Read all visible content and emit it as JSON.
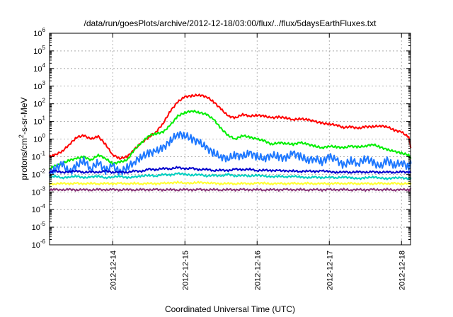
{
  "chart_data": {
    "type": "line",
    "title": "/data/run/goesPlots/archive/2012-12-18/03:00/flux/../flux/5daysEarthFluxes.txt",
    "xlabel": "Coordinated Universal Time (UTC)",
    "ylabel": {
      "pre": "protons/cm",
      "sup": "2",
      "post": "-s-sr-MeV"
    },
    "y_scale": "log",
    "ylim_exponent": [
      -6,
      6
    ],
    "y_tick_exponents": [
      "-6",
      "-5",
      "-4",
      "-3",
      "-2",
      "-1",
      "0",
      "1",
      "2",
      "3",
      "4",
      "5",
      "6"
    ],
    "y_tick_base": "10",
    "xlim": [
      "2012-12-13 03:00",
      "2012-12-18 03:00"
    ],
    "x_ticks": [
      "2012-12-14",
      "2012-12-15",
      "2012-12-16",
      "2012-12-17",
      "2012-12-18"
    ],
    "x_tick_days": [
      14,
      15,
      16,
      17,
      18
    ],
    "grid": true,
    "x_days": [
      13.12,
      13.2,
      13.3,
      13.4,
      13.5,
      13.6,
      13.7,
      13.8,
      13.9,
      14.0,
      14.1,
      14.2,
      14.3,
      14.4,
      14.5,
      14.6,
      14.7,
      14.8,
      14.9,
      15.0,
      15.1,
      15.2,
      15.3,
      15.4,
      15.5,
      15.6,
      15.7,
      15.8,
      15.9,
      16.0,
      16.1,
      16.2,
      16.3,
      16.4,
      16.5,
      16.6,
      16.7,
      16.8,
      16.9,
      17.0,
      17.1,
      17.2,
      17.3,
      17.4,
      17.5,
      17.6,
      17.7,
      17.8,
      17.9,
      18.0,
      18.1,
      18.13
    ],
    "series": [
      {
        "color": "#ff0000",
        "log10_values": [
          -1.0,
          -0.9,
          -0.7,
          -0.3,
          0.1,
          0.2,
          0.0,
          0.15,
          -0.3,
          -0.9,
          -1.1,
          -1.0,
          -0.6,
          -0.2,
          0.1,
          0.4,
          0.9,
          1.6,
          2.1,
          2.4,
          2.45,
          2.5,
          2.4,
          2.1,
          1.7,
          1.3,
          1.2,
          1.4,
          1.3,
          1.35,
          1.3,
          1.2,
          1.25,
          1.2,
          1.1,
          1.15,
          1.1,
          1.0,
          0.9,
          0.85,
          0.8,
          0.65,
          0.7,
          0.6,
          0.7,
          0.7,
          0.75,
          0.7,
          0.5,
          0.4,
          0.1,
          -0.5
        ]
      },
      {
        "color": "#00ee00",
        "log10_values": [
          -1.7,
          -1.5,
          -1.4,
          -1.2,
          -1.1,
          -1.0,
          -1.2,
          -0.9,
          -1.1,
          -1.4,
          -1.3,
          -1.2,
          -0.6,
          -0.2,
          0.2,
          0.3,
          0.4,
          0.8,
          1.3,
          1.5,
          1.6,
          1.5,
          1.4,
          1.1,
          0.6,
          0.2,
          0.0,
          0.2,
          0.1,
          0.0,
          -0.1,
          -0.3,
          -0.2,
          -0.25,
          -0.3,
          -0.2,
          -0.3,
          -0.4,
          -0.5,
          -0.4,
          -0.45,
          -0.5,
          -0.4,
          -0.45,
          -0.4,
          -0.3,
          -0.45,
          -0.6,
          -0.7,
          -0.8,
          -0.9,
          -1.1
        ]
      },
      {
        "color": "#1e78ff",
        "log10_values": [
          -2.0,
          -1.7,
          -1.4,
          -1.9,
          -1.5,
          -1.2,
          -1.7,
          -1.3,
          -1.8,
          -1.5,
          -1.9,
          -1.6,
          -1.3,
          -1.0,
          -0.8,
          -0.7,
          -0.5,
          -0.1,
          0.3,
          0.2,
          0.0,
          -0.2,
          -0.5,
          -0.8,
          -1.0,
          -1.1,
          -0.9,
          -1.0,
          -0.8,
          -1.0,
          -1.1,
          -0.9,
          -1.0,
          -1.1,
          -0.8,
          -1.0,
          -1.2,
          -1.1,
          -1.3,
          -1.0,
          -1.2,
          -1.5,
          -1.2,
          -1.4,
          -1.1,
          -1.3,
          -1.6,
          -1.2,
          -1.5,
          -1.3,
          -1.6,
          -1.4
        ]
      },
      {
        "color": "#0000cc",
        "log10_values": [
          -1.9,
          -1.8,
          -1.9,
          -1.85,
          -1.8,
          -1.9,
          -1.85,
          -1.9,
          -1.8,
          -1.9,
          -1.85,
          -1.9,
          -1.8,
          -1.85,
          -1.7,
          -1.75,
          -1.65,
          -1.7,
          -1.6,
          -1.7,
          -1.65,
          -1.75,
          -1.7,
          -1.8,
          -1.75,
          -1.8,
          -1.7,
          -1.75,
          -1.7,
          -1.8,
          -1.75,
          -1.8,
          -1.78,
          -1.82,
          -1.8,
          -1.85,
          -1.8,
          -1.85,
          -1.8,
          -1.85,
          -1.9,
          -1.85,
          -1.9,
          -1.85,
          -1.9,
          -1.85,
          -1.9,
          -1.85,
          -1.9,
          -1.85,
          -1.9,
          -1.85
        ]
      },
      {
        "color": "#00d0c0",
        "log10_values": [
          -2.2,
          -2.1,
          -2.2,
          -2.15,
          -2.1,
          -2.2,
          -2.15,
          -2.1,
          -2.2,
          -2.15,
          -2.1,
          -2.2,
          -2.15,
          -2.1,
          -2.05,
          -2.1,
          -2.0,
          -2.05,
          -1.95,
          -2.0,
          -2.05,
          -2.0,
          -2.1,
          -2.05,
          -2.1,
          -2.0,
          -2.1,
          -2.05,
          -2.1,
          -2.05,
          -2.1,
          -2.15,
          -2.1,
          -2.15,
          -2.1,
          -2.15,
          -2.2,
          -2.15,
          -2.2,
          -2.15,
          -2.2,
          -2.15,
          -2.2,
          -2.25,
          -2.2,
          -2.15,
          -2.2,
          -2.25,
          -2.2,
          -2.2,
          -2.25,
          -2.2
        ]
      },
      {
        "color": "#ffff33",
        "log10_values": [
          -2.55,
          -2.55,
          -2.5,
          -2.55,
          -2.5,
          -2.55,
          -2.5,
          -2.55,
          -2.5,
          -2.55,
          -2.5,
          -2.55,
          -2.5,
          -2.55,
          -2.5,
          -2.55,
          -2.5,
          -2.5,
          -2.45,
          -2.5,
          -2.5,
          -2.45,
          -2.5,
          -2.5,
          -2.55,
          -2.5,
          -2.55,
          -2.5,
          -2.55,
          -2.5,
          -2.5,
          -2.55,
          -2.5,
          -2.55,
          -2.5,
          -2.55,
          -2.5,
          -2.55,
          -2.5,
          -2.55,
          -2.5,
          -2.55,
          -2.5,
          -2.55,
          -2.5,
          -2.55,
          -2.5,
          -2.55,
          -2.5,
          -2.55,
          -2.5,
          -2.55
        ]
      },
      {
        "color": "#883377",
        "log10_values": [
          -2.9,
          -2.85,
          -2.9,
          -2.85,
          -2.9,
          -2.85,
          -2.9,
          -2.85,
          -2.9,
          -2.85,
          -2.9,
          -2.85,
          -2.9,
          -2.85,
          -2.9,
          -2.85,
          -2.9,
          -2.85,
          -2.9,
          -2.85,
          -2.9,
          -2.85,
          -2.9,
          -2.85,
          -2.9,
          -2.85,
          -2.9,
          -2.85,
          -2.9,
          -2.85,
          -2.9,
          -2.85,
          -2.9,
          -2.85,
          -2.9,
          -2.85,
          -2.9,
          -2.85,
          -2.9,
          -2.85,
          -2.9,
          -2.85,
          -2.9,
          -2.85,
          -2.9,
          -2.85,
          -2.9,
          -2.85,
          -2.9,
          -2.85,
          -2.9,
          -2.85
        ]
      }
    ]
  }
}
